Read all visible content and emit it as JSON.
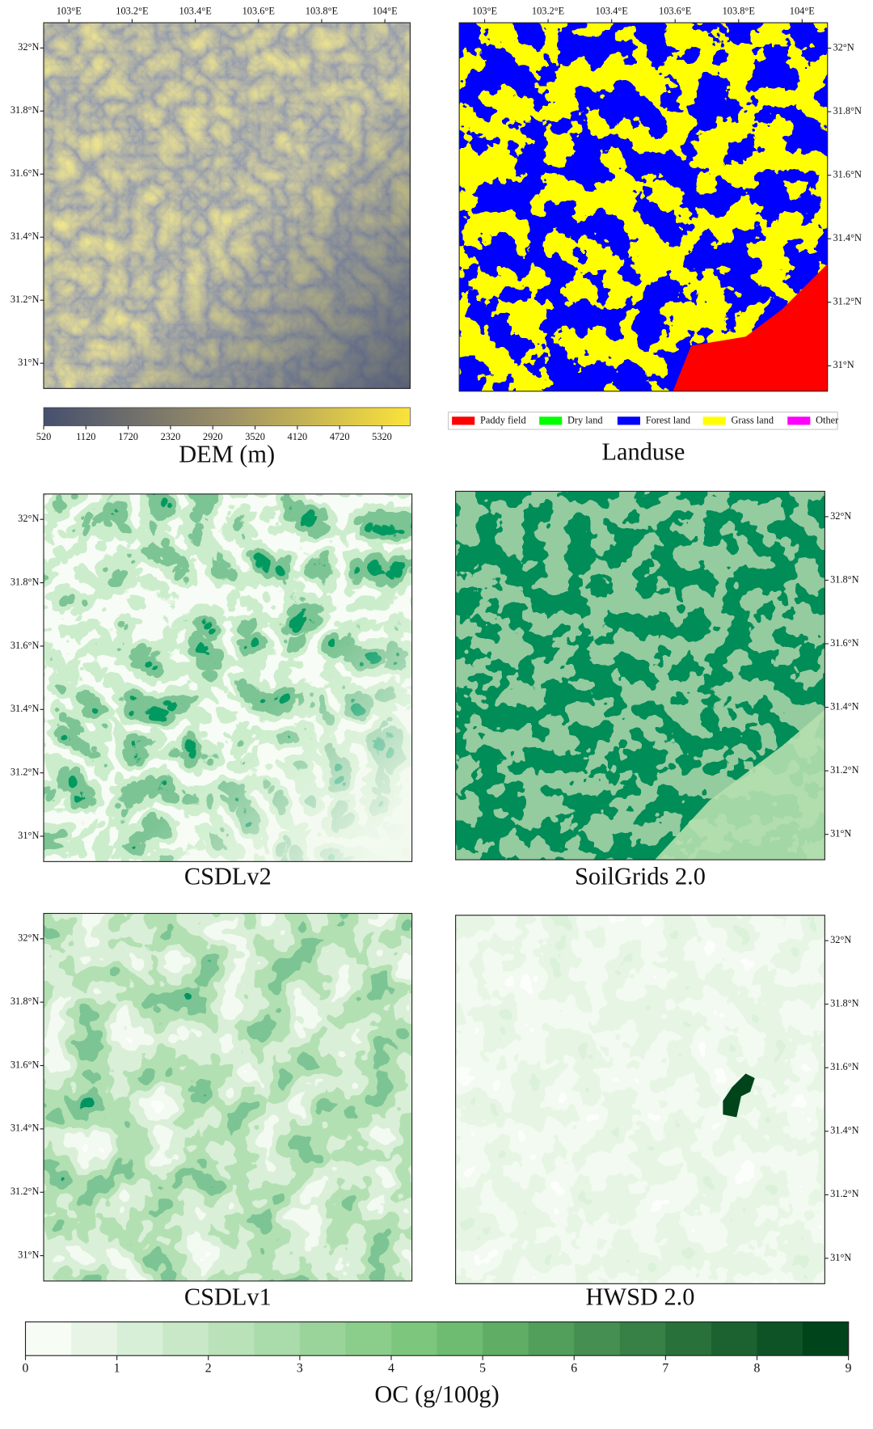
{
  "lon_ticks": [
    {
      "value": 103,
      "label": "103°E"
    },
    {
      "value": 103.2,
      "label": "103.2°E"
    },
    {
      "value": 103.4,
      "label": "103.4°E"
    },
    {
      "value": 103.6,
      "label": "103.6°E"
    },
    {
      "value": 103.8,
      "label": "103.8°E"
    },
    {
      "value": 104,
      "label": "104°E"
    }
  ],
  "lonlim": [
    102.92,
    104.08
  ],
  "lat_ticks": [
    {
      "value": 32,
      "label": "32°N"
    },
    {
      "value": 31.8,
      "label": "31.8°N"
    },
    {
      "value": 31.6,
      "label": "31.6°N"
    },
    {
      "value": 31.4,
      "label": "31.4°N"
    },
    {
      "value": 31.2,
      "label": "31.2°N"
    },
    {
      "value": 31,
      "label": "31°N"
    }
  ],
  "latlim": [
    30.92,
    32.08
  ],
  "panels": [
    {
      "title": "DEM (m)"
    },
    {
      "title": "Landuse"
    },
    {
      "title": "CSDLv2"
    },
    {
      "title": "SoilGrids 2.0"
    },
    {
      "title": "CSDLv1"
    },
    {
      "title": "HWSD 2.0"
    }
  ],
  "dem_colorbar": {
    "lim": [
      520,
      5720
    ],
    "ticks": [
      520,
      1120,
      1720,
      2320,
      2920,
      3520,
      4120,
      4720,
      5320
    ]
  },
  "landuse_legend": [
    {
      "name": "Paddy field",
      "color": "#ff0000"
    },
    {
      "name": "Dry land",
      "color": "#00ff00"
    },
    {
      "name": "Forest land",
      "color": "#0000ff"
    },
    {
      "name": "Grass land",
      "color": "#ffff00"
    },
    {
      "name": "Other",
      "color": "#ff00ff"
    }
  ],
  "oc_colorbar": {
    "label": "OC (g/100g)",
    "lim": [
      0,
      9
    ],
    "ticks": [
      0,
      1,
      2,
      3,
      4,
      5,
      6,
      7,
      8,
      9
    ]
  }
}
